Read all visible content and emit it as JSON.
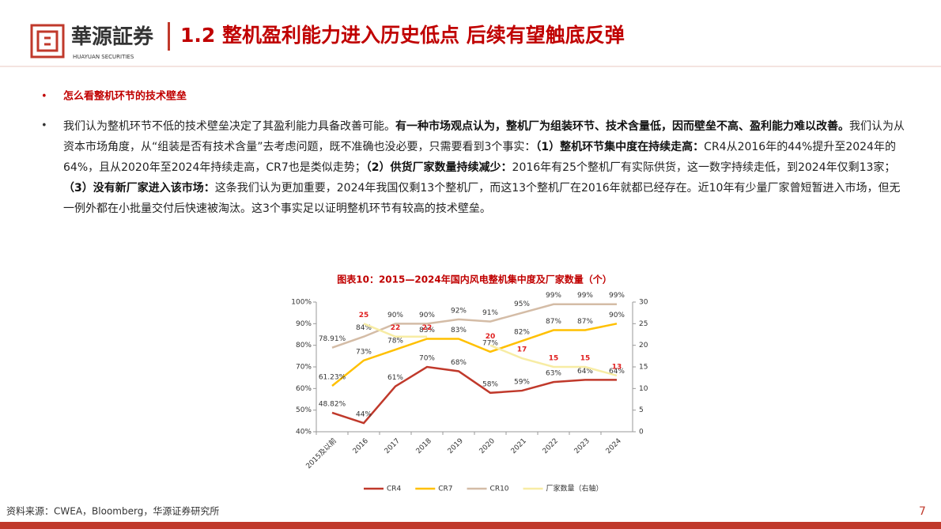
{
  "header": {
    "logo_name": "華源証券",
    "logo_subtitle": "HUAYUAN SECURITIES",
    "title": "1.2 整机盈利能力进入历史低点 后续有望触底反弹"
  },
  "bullets": [
    {
      "text": "怎么看整机环节的技术壁垒"
    },
    {
      "runs": [
        {
          "text": "我们认为整机环节不低的技术壁垒决定了其盈利能力具备改善可能。",
          "bold": false
        },
        {
          "text": "有一种市场观点认为，整机厂为组装环节、技术含量低，因而壁垒不高、盈利能力难以改善。",
          "bold": true
        },
        {
          "text": "我们认为从资本市场角度，从“组装是否有技术含量”去考虑问题，既不准确也没必要，只需要看到3个事实：",
          "bold": false
        },
        {
          "text": "（1）整机环节集中度在持续走高：",
          "bold": true
        },
        {
          "text": "CR4从2016年的44%提升至2024年的64%，且从2020年至2024年持续走高，CR7也是类似走势；",
          "bold": false
        },
        {
          "text": "（2）供货厂家数量持续减少：",
          "bold": true
        },
        {
          "text": "2016年有25个整机厂有实际供货，这一数字持续走低，到2024年仅剩13家；",
          "bold": false
        },
        {
          "text": "（3）没有新厂家进入该市场：",
          "bold": true
        },
        {
          "text": "这条我们认为更加重要，2024年我国仅剩13个整机厂，而这13个整机厂在2016年就都已经存在。近10年有少量厂家曾短暂进入市场，但无一例外都在小批量交付后快速被淘汰。这3个事实足以证明整机环节有较高的技术壁垒。",
          "bold": false
        }
      ]
    }
  ],
  "chart_data": {
    "type": "line",
    "title": "图表10：2015—2024年国内风电整机集中度及厂家数量（个）",
    "categories": [
      "2015及以前",
      "2016",
      "2017",
      "2018",
      "2019",
      "2020",
      "2021",
      "2022",
      "2023",
      "2024"
    ],
    "series": [
      {
        "name": "CR4",
        "color": "#c0392b",
        "values": [
          48.82,
          44,
          61,
          70,
          68,
          58,
          59,
          63,
          64,
          64
        ],
        "value_labels": [
          "48.82%",
          "44%",
          "61%",
          "70%",
          "68%",
          "58%",
          "59%",
          "63%",
          "64%",
          "64%"
        ]
      },
      {
        "name": "CR7",
        "color": "#ffc000",
        "values": [
          61.23,
          73,
          78,
          83,
          83,
          77,
          82,
          87,
          87,
          90
        ],
        "value_labels": [
          "61.23%",
          "73%",
          "78%",
          "83%",
          "83%",
          "77%",
          "82%",
          "87%",
          "87%",
          "90%"
        ]
      },
      {
        "name": "CR10",
        "color": "#d4bca6",
        "values": [
          78.91,
          84,
          90,
          90,
          92,
          91,
          95,
          99,
          99,
          99
        ],
        "value_labels": [
          "78.91%",
          "84%",
          "90%",
          "90%",
          "92%",
          "91%",
          "95%",
          "99%",
          "99%",
          "99%"
        ]
      },
      {
        "name": "厂家数量（右轴）",
        "color": "#f7eca4",
        "axis": "y2",
        "values": [
          null,
          25,
          22,
          22,
          null,
          20,
          17,
          15,
          15,
          13
        ],
        "label_color": "#e02020"
      }
    ],
    "ylim": [
      40,
      100
    ],
    "yticks": [
      {
        "value": 40,
        "label": "40%"
      },
      {
        "value": 50,
        "label": "50%"
      },
      {
        "value": 60,
        "label": "60%"
      },
      {
        "value": 70,
        "label": "70%"
      },
      {
        "value": 80,
        "label": "80%"
      },
      {
        "value": 90,
        "label": "90%"
      },
      {
        "value": 100,
        "label": "100%"
      }
    ],
    "y2lim": [
      0,
      30
    ],
    "y2ticks": [
      0,
      5,
      10,
      15,
      20,
      25,
      30
    ],
    "legend": "bottom"
  },
  "source": "资料来源：CWEA，Bloomberg，华源证券研究所",
  "page_number": 7
}
